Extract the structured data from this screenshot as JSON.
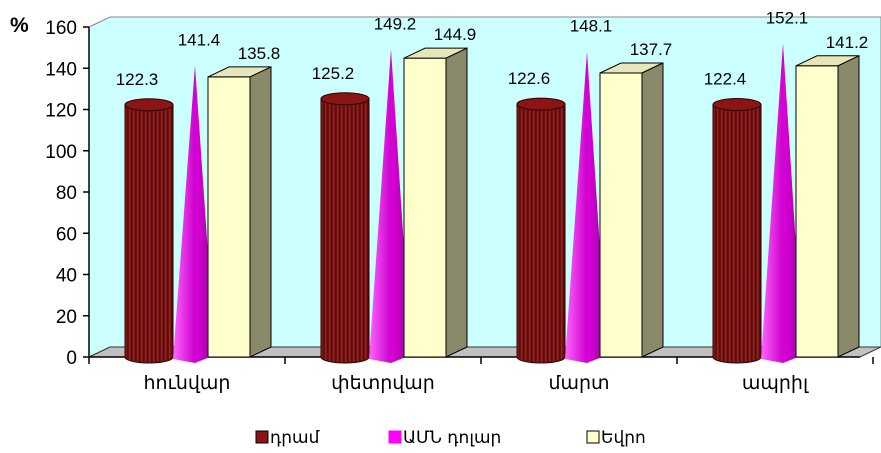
{
  "chart_data": {
    "type": "bar",
    "unit_label": "%",
    "categories": [
      "հունվար",
      "փետրվար",
      "մարտ",
      "ապրիլ"
    ],
    "series": [
      {
        "name": "դրամ",
        "shape": "cylinder",
        "color": "#8b1414",
        "values": [
          122.3,
          125.2,
          122.6,
          122.4
        ]
      },
      {
        "name": "ԱՄՆ դոլար",
        "shape": "pyramid",
        "color": "#ff00ff",
        "values": [
          141.4,
          149.2,
          148.1,
          152.1
        ]
      },
      {
        "name": "Եվրո",
        "shape": "box",
        "color": "#ffffcc",
        "values": [
          135.8,
          144.9,
          137.7,
          141.2
        ]
      }
    ],
    "y_ticks": [
      "0",
      "20",
      "40",
      "60",
      "80",
      "100",
      "120",
      "140",
      "160"
    ],
    "ylim": [
      0,
      160
    ],
    "grid": false,
    "legend_position": "bottom",
    "colors": {
      "plot_wall": "#ccffff",
      "floor": "#c0c0c0"
    }
  }
}
